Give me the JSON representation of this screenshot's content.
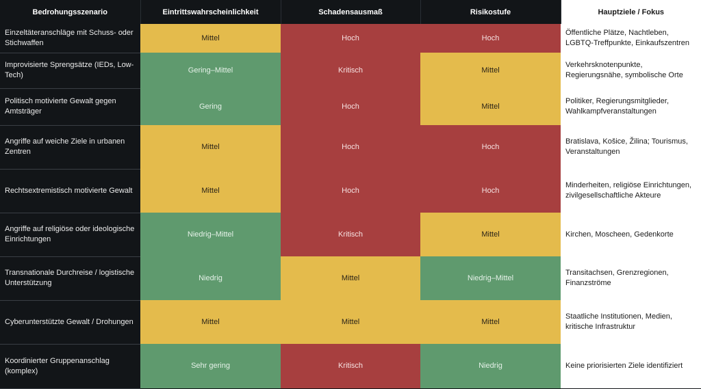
{
  "colors": {
    "header_bg": "#121518",
    "scenario_bg": "#121518",
    "high_red": "#a73f3f",
    "medium_yellow": "#e4bb4c",
    "low_green": "#5f9a6e",
    "focus_bg": "#ffffff"
  },
  "headers": [
    "Bedrohungsszenario",
    "Eintrittswahrscheinlichkeit",
    "Schadensausmaß",
    "Risikostufe",
    "Hauptziele / Fokus"
  ],
  "rows": [
    {
      "scenario": "Einzeltäteranschläge mit Schuss- oder Stichwaffen",
      "probability": "Mittel",
      "damage": "Hoch",
      "risk": "Hoch",
      "focus": "Öffentliche Plätze, Nachtleben, LGBTQ-Treffpunkte, Einkaufszentren"
    },
    {
      "scenario": "Improvisierte Sprengsätze (IEDs, Low-Tech)",
      "probability": "Gering–Mittel",
      "damage": "Kritisch",
      "risk": "Mittel",
      "focus": "Verkehrsknotenpunkte, Regierungsnähe, symbolische Orte"
    },
    {
      "scenario": "Politisch motivierte Gewalt gegen Amtsträger",
      "probability": "Gering",
      "damage": "Hoch",
      "risk": "Mittel",
      "focus": "Politiker, Regierungsmitglieder, Wahlkampfveranstaltungen"
    },
    {
      "scenario": "Angriffe auf weiche Ziele in urbanen Zentren",
      "probability": "Mittel",
      "damage": "Hoch",
      "risk": "Hoch",
      "focus": "Bratislava, Košice, Žilina; Tourismus, Veranstaltungen"
    },
    {
      "scenario": "Rechtsextremistisch motivierte Gewalt",
      "probability": "Mittel",
      "damage": "Hoch",
      "risk": "Hoch",
      "focus": "Minderheiten, religiöse Einrichtungen, zivilgesellschaftliche Akteure"
    },
    {
      "scenario": "Angriffe auf religiöse oder ideologische Einrichtungen",
      "probability": "Niedrig–Mittel",
      "damage": "Kritisch",
      "risk": "Mittel",
      "focus": "Kirchen, Moscheen, Gedenkorte"
    },
    {
      "scenario": "Transnationale Durchreise / logistische Unterstützung",
      "probability": "Niedrig",
      "damage": "Mittel",
      "risk": "Niedrig–Mittel",
      "focus": "Transitachsen, Grenzregionen, Finanzströme"
    },
    {
      "scenario": "Cyberunterstützte Gewalt / Drohungen",
      "probability": "Mittel",
      "damage": "Mittel",
      "risk": "Mittel",
      "focus": "Staatliche Institutionen, Medien, kritische Infrastruktur"
    },
    {
      "scenario": "Koordinierter Gruppenanschlag (komplex)",
      "probability": "Sehr gering",
      "damage": "Kritisch",
      "risk": "Niedrig",
      "focus": "Keine priorisierten Ziele identifiziert"
    }
  ]
}
